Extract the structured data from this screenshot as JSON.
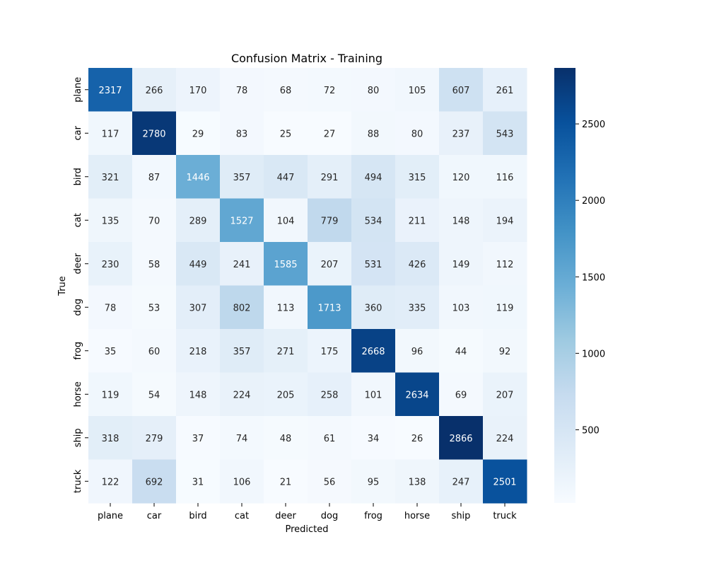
{
  "chart_data": {
    "type": "heatmap",
    "title": "Confusion Matrix - Training",
    "xlabel": "Predicted",
    "ylabel": "True",
    "x_categories": [
      "plane",
      "car",
      "bird",
      "cat",
      "deer",
      "dog",
      "frog",
      "horse",
      "ship",
      "truck"
    ],
    "y_categories": [
      "plane",
      "car",
      "bird",
      "cat",
      "deer",
      "dog",
      "frog",
      "horse",
      "ship",
      "truck"
    ],
    "values": [
      [
        2317,
        266,
        170,
        78,
        68,
        72,
        80,
        105,
        607,
        261
      ],
      [
        117,
        2780,
        29,
        83,
        25,
        27,
        88,
        80,
        237,
        543
      ],
      [
        321,
        87,
        1446,
        357,
        447,
        291,
        494,
        315,
        120,
        116
      ],
      [
        135,
        70,
        289,
        1527,
        104,
        779,
        534,
        211,
        148,
        194
      ],
      [
        230,
        58,
        449,
        241,
        1585,
        207,
        531,
        426,
        149,
        112
      ],
      [
        78,
        53,
        307,
        802,
        113,
        1713,
        360,
        335,
        103,
        119
      ],
      [
        35,
        60,
        218,
        357,
        271,
        175,
        2668,
        96,
        44,
        92
      ],
      [
        119,
        54,
        148,
        224,
        205,
        258,
        101,
        2634,
        69,
        207
      ],
      [
        318,
        279,
        37,
        74,
        48,
        61,
        34,
        26,
        2866,
        224
      ],
      [
        122,
        692,
        31,
        106,
        21,
        56,
        95,
        138,
        247,
        2501
      ]
    ],
    "colormap": "Blues",
    "vmin": 21,
    "vmax": 2866,
    "colorbar_ticks": [
      500,
      1000,
      1500,
      2000,
      2500
    ]
  }
}
